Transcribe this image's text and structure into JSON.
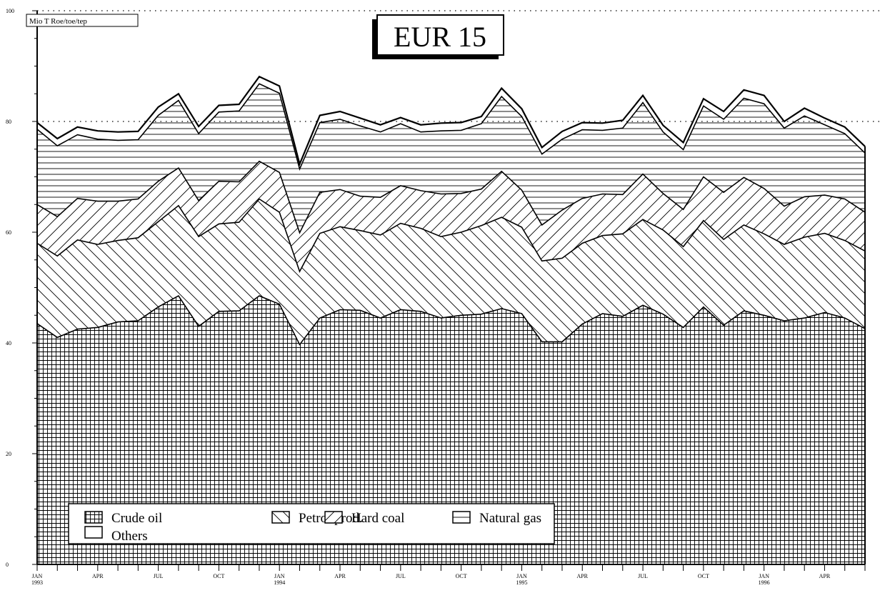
{
  "chart_data": {
    "type": "area",
    "stacked": true,
    "title": "EUR 15",
    "ylabel": "Mio T Roe/toe/tep",
    "ylim": [
      0,
      100
    ],
    "yticks": [
      0,
      20,
      40,
      60,
      80,
      100
    ],
    "gridlines_y": [
      80
    ],
    "x_tick_labels": [
      {
        "index": 0,
        "label": "JAN",
        "sub": "1993"
      },
      {
        "index": 3,
        "label": "APR",
        "sub": ""
      },
      {
        "index": 6,
        "label": "JUL",
        "sub": ""
      },
      {
        "index": 9,
        "label": "OCT",
        "sub": ""
      },
      {
        "index": 12,
        "label": "JAN",
        "sub": "1994"
      },
      {
        "index": 15,
        "label": "APR",
        "sub": ""
      },
      {
        "index": 18,
        "label": "JUL",
        "sub": ""
      },
      {
        "index": 21,
        "label": "OCT",
        "sub": ""
      },
      {
        "index": 24,
        "label": "JAN",
        "sub": "1995"
      },
      {
        "index": 27,
        "label": "APR",
        "sub": ""
      },
      {
        "index": 30,
        "label": "JUL",
        "sub": ""
      },
      {
        "index": 33,
        "label": "OCT",
        "sub": ""
      },
      {
        "index": 36,
        "label": "JAN",
        "sub": "1996"
      },
      {
        "index": 39,
        "label": "APR",
        "sub": ""
      }
    ],
    "n_points": 42,
    "legend_position": "bottom-left",
    "series": [
      {
        "name": "Crude oil",
        "pattern": "grid",
        "values": [
          43.5,
          41.0,
          42.5,
          42.8,
          43.8,
          44.0,
          46.5,
          48.5,
          43.0,
          45.7,
          45.8,
          48.5,
          47.0,
          39.7,
          44.5,
          46.0,
          45.9,
          44.5,
          46.0,
          45.7,
          44.5,
          45.0,
          45.2,
          46.2,
          45.3,
          40.2,
          40.2,
          43.4,
          45.3,
          44.8,
          46.8,
          45.2,
          42.8,
          46.5,
          43.2,
          45.8,
          45.0,
          44.0,
          44.5,
          45.5,
          44.5,
          42.6
        ]
      },
      {
        "name": "Petrol.prod.",
        "pattern": "back-diagonal",
        "values": [
          14.5,
          14.7,
          16.1,
          15.0,
          14.7,
          15.0,
          15.4,
          16.3,
          16.2,
          15.8,
          16.0,
          17.5,
          16.6,
          13.2,
          15.3,
          15.0,
          14.4,
          15.0,
          15.6,
          15.0,
          14.7,
          15.0,
          16.0,
          16.5,
          15.6,
          14.6,
          15.1,
          14.6,
          14.1,
          14.9,
          15.5,
          15.2,
          14.6,
          15.6,
          15.5,
          15.5,
          14.7,
          13.8,
          14.6,
          14.3,
          14.0,
          14.0
        ]
      },
      {
        "name": "Hard coal",
        "pattern": "forward-diagonal",
        "values": [
          7.0,
          7.1,
          7.5,
          7.8,
          7.1,
          7.0,
          7.3,
          6.8,
          6.5,
          7.7,
          7.3,
          6.8,
          7.2,
          7.0,
          7.4,
          6.7,
          6.2,
          6.8,
          6.8,
          6.8,
          7.7,
          7.0,
          6.6,
          8.3,
          6.7,
          6.5,
          8.7,
          8.1,
          7.5,
          7.1,
          8.2,
          6.6,
          6.7,
          7.9,
          8.5,
          8.6,
          8.2,
          6.9,
          7.3,
          6.9,
          7.5,
          7.0
        ]
      },
      {
        "name": "Natural gas",
        "pattern": "horizontal",
        "values": [
          13.6,
          12.8,
          11.5,
          11.2,
          11.0,
          10.7,
          11.9,
          12.2,
          12.1,
          12.5,
          12.8,
          14.0,
          14.3,
          11.5,
          12.6,
          12.7,
          12.7,
          11.8,
          11.2,
          10.6,
          11.4,
          11.4,
          11.8,
          13.5,
          13.3,
          12.8,
          12.8,
          12.4,
          11.5,
          12.0,
          12.9,
          11.1,
          10.8,
          12.8,
          13.2,
          14.3,
          15.3,
          14.1,
          14.6,
          12.7,
          11.8,
          10.7
        ]
      },
      {
        "name": "Others",
        "pattern": "blank",
        "values": [
          1.2,
          1.3,
          1.4,
          1.5,
          1.5,
          1.5,
          1.5,
          1.2,
          1.3,
          1.2,
          1.2,
          1.3,
          1.3,
          0.9,
          1.3,
          1.4,
          1.4,
          1.3,
          1.1,
          1.3,
          1.4,
          1.4,
          1.3,
          1.5,
          1.4,
          1.2,
          1.4,
          1.3,
          1.3,
          1.4,
          1.3,
          1.2,
          1.3,
          1.3,
          1.4,
          1.5,
          1.5,
          1.2,
          1.4,
          1.2,
          1.2,
          1.2
        ]
      }
    ]
  }
}
